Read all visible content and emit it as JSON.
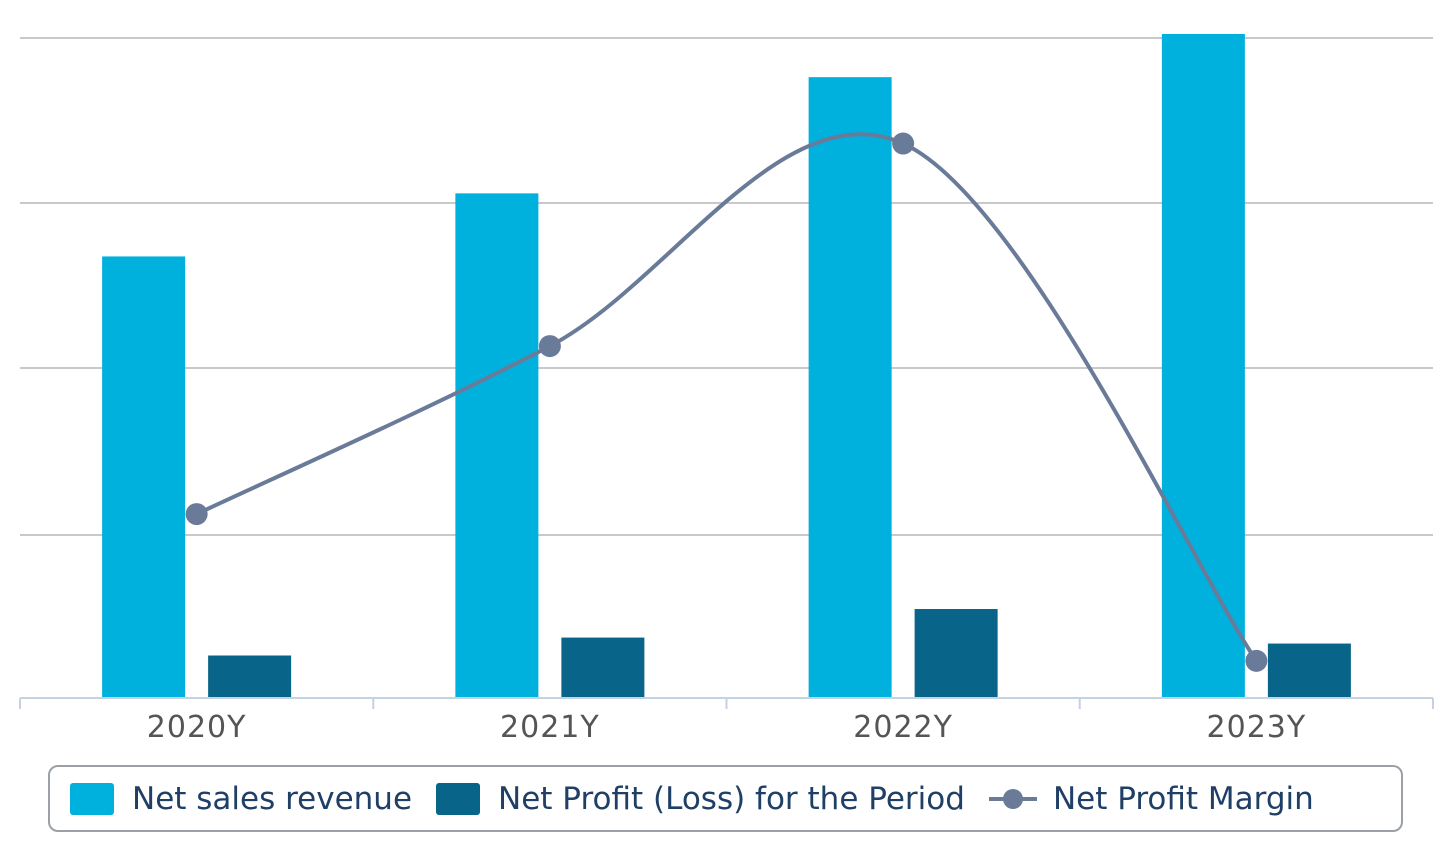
{
  "chart_data": {
    "type": "bar",
    "categories": [
      "2020Y",
      "2021Y",
      "2022Y",
      "2023Y"
    ],
    "series": [
      {
        "name": "Net sales revenue",
        "kind": "bar",
        "color": "#00b0dd",
        "values": [
          66.5,
          76.0,
          93.5,
          100
        ]
      },
      {
        "name": "Net Profit (Loss) for the Period",
        "kind": "bar",
        "color": "#086488",
        "values": [
          6.4,
          9.1,
          13.4,
          8.2
        ]
      },
      {
        "name": "Net Profit Margin",
        "kind": "line",
        "color": "#697b99",
        "values": [
          27.7,
          53.0,
          83.5,
          5.6
        ]
      }
    ],
    "ylim": [
      0,
      100
    ],
    "grid": true,
    "legend": "bottom"
  }
}
